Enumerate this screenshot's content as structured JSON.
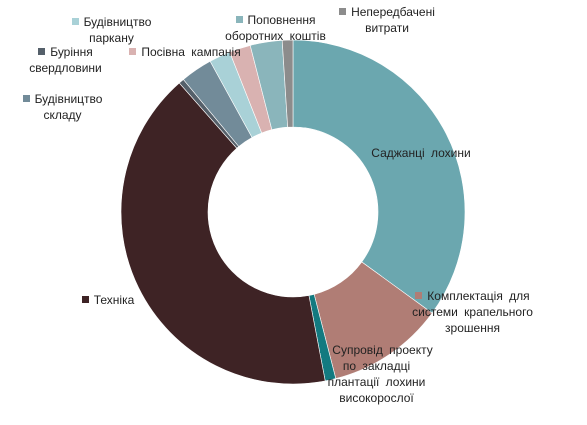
{
  "chart_data": {
    "type": "donut",
    "categories": [
      "Саджанці лохини",
      "Комплектація для системи крапельного зрошення",
      "Супровід проекту по закладці плантації лохини високорослої",
      "Техніка",
      "Буріння свердловини",
      "Будівництво складу",
      "Будівництво паркану",
      "Посівна кампанія",
      "Поповнення оборотних коштів",
      "Непередбачені витрати"
    ],
    "values": [
      35,
      11,
      1,
      41.5,
      0.5,
      3,
      2,
      2,
      3,
      1
    ],
    "colors": [
      "#6ba7af",
      "#b07d75",
      "#137a80",
      "#3e2325",
      "#55606a",
      "#728b99",
      "#a9d1d7",
      "#d9b2b1",
      "#8ab5bb",
      "#8c8c8c"
    ]
  }
}
